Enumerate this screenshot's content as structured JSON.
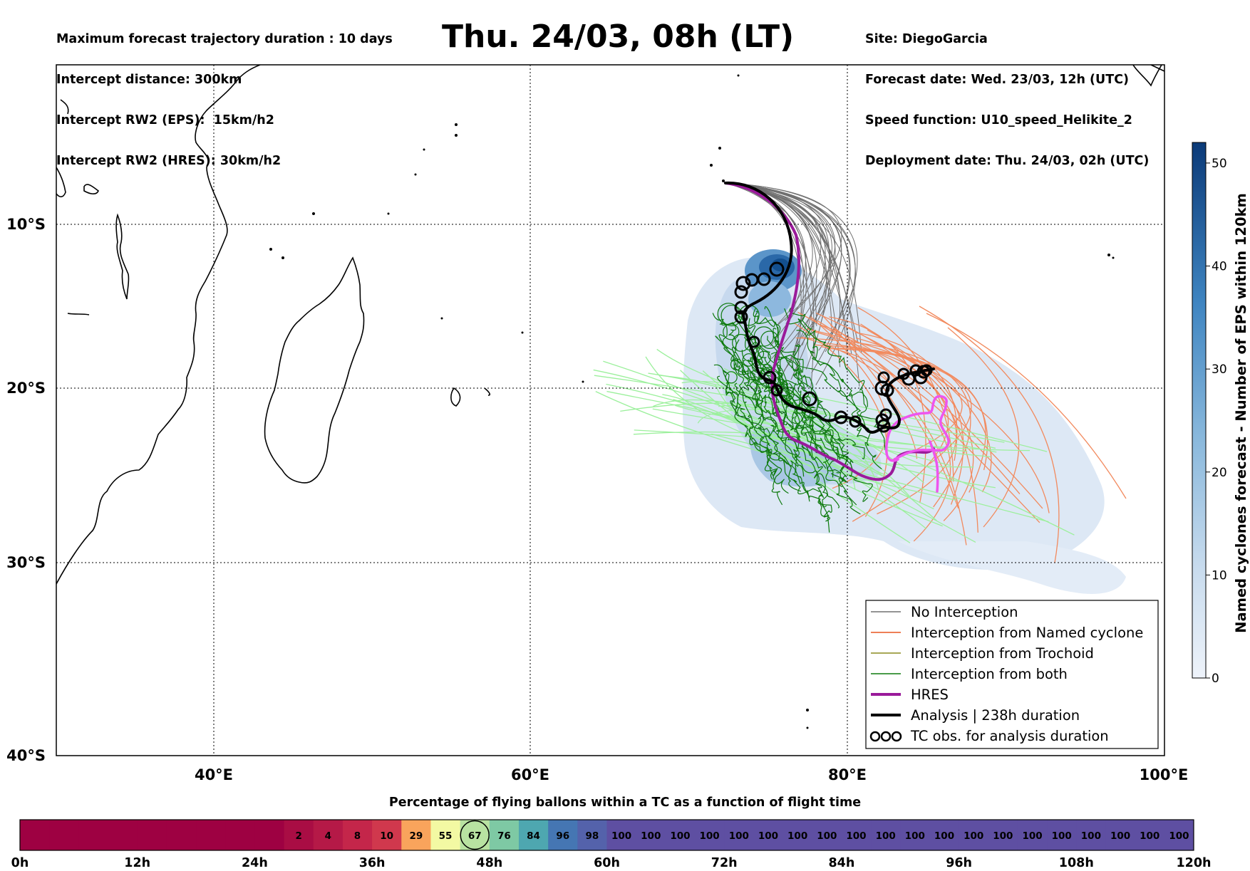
{
  "header_left": [
    "Maximum forecast trajectory duration : 10 days",
    "Intercept distance: 300km",
    "Intercept RW2 (EPS):  15km/h2",
    "Intercept RW2 (HRES): 30km/h2"
  ],
  "title": "Thu. 24/03, 08h (LT)",
  "header_right": [
    "Site: DiegoGarcia",
    "Forecast date: Wed. 23/03, 12h (UTC)",
    "Speed function: U10_speed_Helikite_2",
    "Deployment date: Thu. 24/03, 02h (UTC)"
  ],
  "map": {
    "lon_range": [
      30,
      100
    ],
    "lat_range": [
      -40,
      -0.5
    ],
    "lon_ticks": [
      "40°E",
      "60°E",
      "80°E",
      "100°E"
    ],
    "lat_ticks": [
      "10°S",
      "20°S",
      "30°S",
      "40°S"
    ],
    "grid": "dotted"
  },
  "colorbar": {
    "label": "Named cyclones forecast - Number of EPS within 120km",
    "ticks": [
      "0",
      "10",
      "20",
      "30",
      "40",
      "50"
    ],
    "range": [
      0,
      52
    ],
    "colors": [
      "#e6eef8",
      "#0b3a78"
    ]
  },
  "legend": {
    "items": [
      {
        "label": "No Interception",
        "color": "#707070",
        "style": "thin-line"
      },
      {
        "label": "Interception from Named cyclone",
        "color": "#e8551e",
        "style": "thin-line"
      },
      {
        "label": "Interception from Trochoid",
        "color": "#8b8b1e",
        "style": "thin-line"
      },
      {
        "label": "Interception from both",
        "color": "#0e7a0e",
        "style": "thin-line"
      },
      {
        "label": "HRES",
        "color": "#9a1a9a",
        "style": "thick-line"
      },
      {
        "label": "Analysis | 238h duration",
        "color": "#000000",
        "style": "thick-line"
      },
      {
        "label": "TC obs. for analysis duration",
        "color": "#000000",
        "style": "loops"
      }
    ]
  },
  "timebar": {
    "title": "Percentage of flying ballons within a TC as a function of flight time",
    "time_ticks": [
      "0h",
      "12h",
      "24h",
      "36h",
      "48h",
      "60h",
      "72h",
      "84h",
      "96h",
      "108h",
      "120h"
    ],
    "cells": [
      {
        "value": "",
        "color": "#9e0142"
      },
      {
        "value": "",
        "color": "#9e0142"
      },
      {
        "value": "",
        "color": "#9e0142"
      },
      {
        "value": "",
        "color": "#9e0142"
      },
      {
        "value": "",
        "color": "#9e0142"
      },
      {
        "value": "",
        "color": "#9e0142"
      },
      {
        "value": "",
        "color": "#9e0142"
      },
      {
        "value": "",
        "color": "#9e0142"
      },
      {
        "value": "",
        "color": "#9e0142"
      },
      {
        "value": "2",
        "color": "#a90d44"
      },
      {
        "value": "4",
        "color": "#b51947"
      },
      {
        "value": "8",
        "color": "#c4264a"
      },
      {
        "value": "10",
        "color": "#d0384d"
      },
      {
        "value": "29",
        "color": "#f9a45c"
      },
      {
        "value": "55",
        "color": "#f3f9a3"
      },
      {
        "value": "67",
        "color": "#b8e2a1"
      },
      {
        "value": "76",
        "color": "#7ec9a4"
      },
      {
        "value": "84",
        "color": "#4ea7b0"
      },
      {
        "value": "96",
        "color": "#4576b3"
      },
      {
        "value": "98",
        "color": "#5462ab"
      },
      {
        "value": "100",
        "color": "#5e4fa2"
      },
      {
        "value": "100",
        "color": "#5e4fa2"
      },
      {
        "value": "100",
        "color": "#5e4fa2"
      },
      {
        "value": "100",
        "color": "#5e4fa2"
      },
      {
        "value": "100",
        "color": "#5e4fa2"
      },
      {
        "value": "100",
        "color": "#5e4fa2"
      },
      {
        "value": "100",
        "color": "#5e4fa2"
      },
      {
        "value": "100",
        "color": "#5e4fa2"
      },
      {
        "value": "100",
        "color": "#5e4fa2"
      },
      {
        "value": "100",
        "color": "#5e4fa2"
      },
      {
        "value": "100",
        "color": "#5e4fa2"
      },
      {
        "value": "100",
        "color": "#5e4fa2"
      },
      {
        "value": "100",
        "color": "#5e4fa2"
      },
      {
        "value": "100",
        "color": "#5e4fa2"
      },
      {
        "value": "100",
        "color": "#5e4fa2"
      },
      {
        "value": "100",
        "color": "#5e4fa2"
      },
      {
        "value": "100",
        "color": "#5e4fa2"
      },
      {
        "value": "100",
        "color": "#5e4fa2"
      },
      {
        "value": "100",
        "color": "#5e4fa2"
      },
      {
        "value": "100",
        "color": "#5e4fa2"
      }
    ],
    "current_cell_value": "67"
  }
}
